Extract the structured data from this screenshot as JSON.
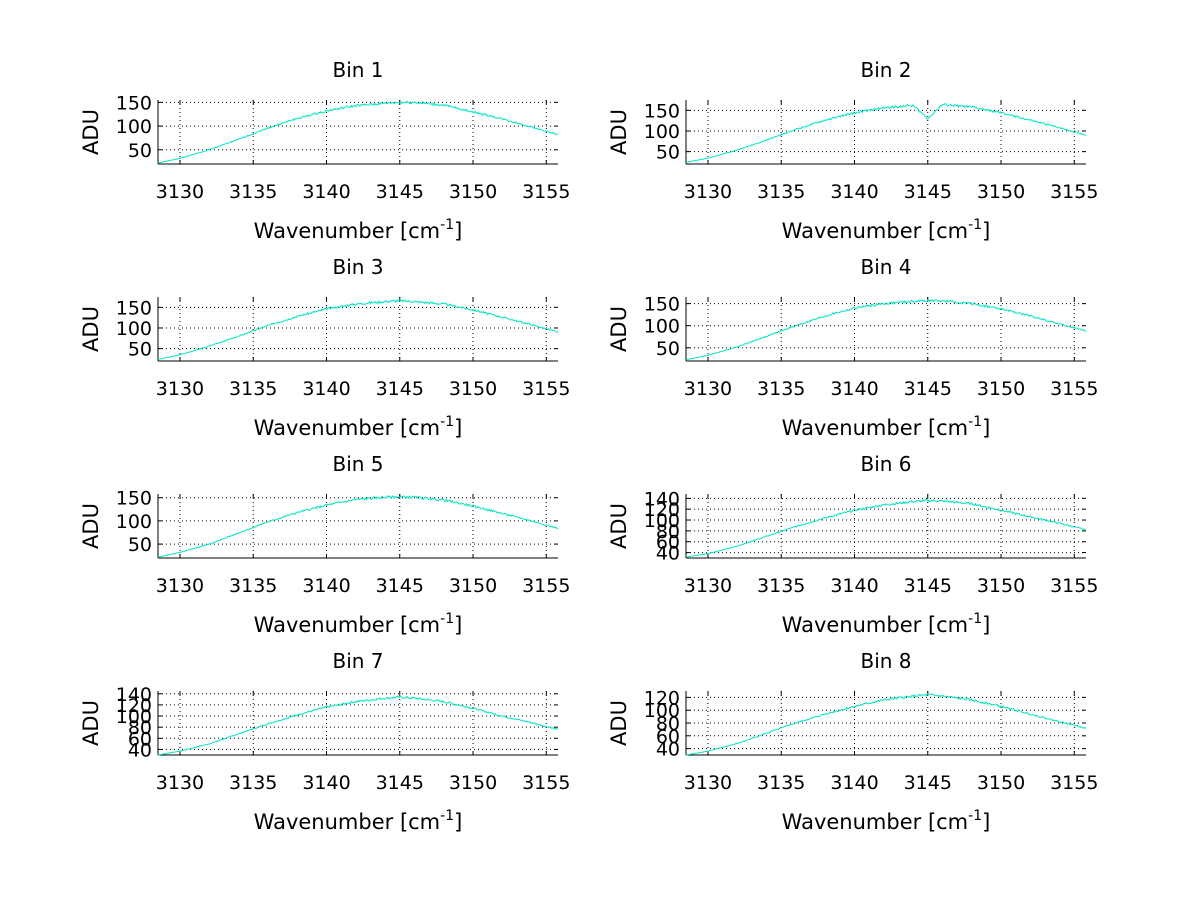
{
  "figure": {
    "background": "#ffffff",
    "series_color": "#00e5c0"
  },
  "chart_data": [
    {
      "type": "line",
      "title": "Bin 1",
      "xlabel_prefix": "Wavenumber [cm",
      "xlabel_sup": "-1",
      "xlabel_suffix": "]",
      "ylabel": "ADU",
      "xlim": [
        3128.5,
        3155.8
      ],
      "ylim": [
        20,
        155
      ],
      "xticks": [
        3130,
        3135,
        3140,
        3145,
        3150,
        3155
      ],
      "yticks": [
        50,
        100,
        150
      ],
      "grid": true,
      "series": [
        {
          "x": [
            3128.5,
            3130,
            3132,
            3134,
            3136,
            3138,
            3140,
            3142,
            3144,
            3145,
            3146,
            3148,
            3150,
            3152,
            3154,
            3155.8
          ],
          "y": [
            22,
            32,
            50,
            72,
            96,
            116,
            132,
            143,
            148,
            150,
            150,
            144,
            130,
            115,
            98,
            82
          ]
        }
      ]
    },
    {
      "type": "line",
      "title": "Bin 2",
      "xlabel_prefix": "Wavenumber [cm",
      "xlabel_sup": "-1",
      "xlabel_suffix": "]",
      "ylabel": "ADU",
      "xlim": [
        3128.5,
        3155.8
      ],
      "ylim": [
        20,
        175
      ],
      "xticks": [
        3130,
        3135,
        3140,
        3145,
        3150,
        3155
      ],
      "yticks": [
        50,
        100,
        150
      ],
      "grid": true,
      "series": [
        {
          "x": [
            3128.5,
            3130,
            3132,
            3134,
            3136,
            3138,
            3140,
            3142,
            3144,
            3145,
            3146,
            3148,
            3150,
            3152,
            3154,
            3155.8
          ],
          "y": [
            24,
            34,
            54,
            78,
            104,
            126,
            144,
            156,
            162,
            130,
            164,
            158,
            144,
            126,
            108,
            90
          ]
        }
      ]
    },
    {
      "type": "line",
      "title": "Bin 3",
      "xlabel_prefix": "Wavenumber [cm",
      "xlabel_sup": "-1",
      "xlabel_suffix": "]",
      "ylabel": "ADU",
      "xlim": [
        3128.5,
        3155.8
      ],
      "ylim": [
        20,
        175
      ],
      "xticks": [
        3130,
        3135,
        3140,
        3145,
        3150,
        3155
      ],
      "yticks": [
        50,
        100,
        150
      ],
      "grid": true,
      "series": [
        {
          "x": [
            3128.5,
            3130,
            3132,
            3134,
            3136,
            3138,
            3140,
            3142,
            3144,
            3145,
            3146,
            3148,
            3150,
            3152,
            3154,
            3155.8
          ],
          "y": [
            24,
            35,
            56,
            80,
            106,
            128,
            146,
            158,
            164,
            166,
            164,
            158,
            144,
            126,
            108,
            90
          ]
        }
      ]
    },
    {
      "type": "line",
      "title": "Bin 4",
      "xlabel_prefix": "Wavenumber [cm",
      "xlabel_sup": "-1",
      "xlabel_suffix": "]",
      "ylabel": "ADU",
      "xlim": [
        3128.5,
        3155.8
      ],
      "ylim": [
        20,
        165
      ],
      "xticks": [
        3130,
        3135,
        3140,
        3145,
        3150,
        3155
      ],
      "yticks": [
        50,
        100,
        150
      ],
      "grid": true,
      "series": [
        {
          "x": [
            3128.5,
            3130,
            3132,
            3134,
            3136,
            3138,
            3140,
            3142,
            3144,
            3145,
            3146,
            3148,
            3150,
            3152,
            3154,
            3155.8
          ],
          "y": [
            23,
            33,
            52,
            76,
            100,
            122,
            140,
            150,
            155,
            157,
            156,
            150,
            138,
            122,
            104,
            88
          ]
        }
      ]
    },
    {
      "type": "line",
      "title": "Bin 5",
      "xlabel_prefix": "Wavenumber [cm",
      "xlabel_sup": "-1",
      "xlabel_suffix": "]",
      "ylabel": "ADU",
      "xlim": [
        3128.5,
        3155.8
      ],
      "ylim": [
        20,
        158
      ],
      "xticks": [
        3130,
        3135,
        3140,
        3145,
        3150,
        3155
      ],
      "yticks": [
        50,
        100,
        150
      ],
      "grid": true,
      "series": [
        {
          "x": [
            3128.5,
            3130,
            3132,
            3134,
            3136,
            3138,
            3140,
            3142,
            3144,
            3145,
            3146,
            3148,
            3150,
            3152,
            3154,
            3155.8
          ],
          "y": [
            22,
            32,
            50,
            74,
            98,
            118,
            134,
            146,
            151,
            152,
            151,
            145,
            132,
            116,
            100,
            84
          ]
        }
      ]
    },
    {
      "type": "line",
      "title": "Bin 6",
      "xlabel_prefix": "Wavenumber [cm",
      "xlabel_sup": "-1",
      "xlabel_suffix": "]",
      "ylabel": "ADU",
      "xlim": [
        3128.5,
        3155.8
      ],
      "ylim": [
        30,
        148
      ],
      "xticks": [
        3130,
        3135,
        3140,
        3145,
        3150,
        3155
      ],
      "yticks": [
        40,
        60,
        80,
        100,
        120,
        140
      ],
      "ytick_labels": [
        "40",
        "60",
        "80",
        "100",
        "120",
        "140"
      ],
      "grid": true,
      "series": [
        {
          "x": [
            3128.5,
            3130,
            3132,
            3134,
            3136,
            3138,
            3140,
            3142,
            3144,
            3145,
            3146,
            3148,
            3150,
            3152,
            3154,
            3155.8
          ],
          "y": [
            32,
            38,
            52,
            70,
            88,
            104,
            118,
            128,
            134,
            136,
            135,
            130,
            118,
            106,
            94,
            82
          ]
        }
      ]
    },
    {
      "type": "line",
      "title": "Bin 7",
      "xlabel_prefix": "Wavenumber [cm",
      "xlabel_sup": "-1",
      "xlabel_suffix": "]",
      "ylabel": "ADU",
      "xlim": [
        3128.5,
        3155.8
      ],
      "ylim": [
        30,
        145
      ],
      "xticks": [
        3130,
        3135,
        3140,
        3145,
        3150,
        3155
      ],
      "yticks": [
        40,
        60,
        80,
        100,
        120,
        140
      ],
      "ytick_labels": [
        "40",
        "60",
        "80",
        "100",
        "120",
        "140"
      ],
      "grid": true,
      "series": [
        {
          "x": [
            3128.5,
            3130,
            3132,
            3134,
            3136,
            3138,
            3140,
            3142,
            3144,
            3145,
            3146,
            3148,
            3150,
            3152,
            3154,
            3155.8
          ],
          "y": [
            30,
            37,
            50,
            68,
            86,
            102,
            116,
            126,
            132,
            134,
            132,
            126,
            114,
            100,
            88,
            76
          ]
        }
      ]
    },
    {
      "type": "line",
      "title": "Bin 8",
      "xlabel_prefix": "Wavenumber [cm",
      "xlabel_sup": "-1",
      "xlabel_suffix": "]",
      "ylabel": "ADU",
      "xlim": [
        3128.5,
        3155.8
      ],
      "ylim": [
        30,
        130
      ],
      "xticks": [
        3130,
        3135,
        3140,
        3145,
        3150,
        3155
      ],
      "yticks": [
        40,
        60,
        80,
        100,
        120
      ],
      "ytick_labels": [
        "40",
        "60",
        "80",
        "100",
        "120"
      ],
      "grid": true,
      "series": [
        {
          "x": [
            3128.5,
            3130,
            3132,
            3134,
            3136,
            3138,
            3140,
            3142,
            3144,
            3145,
            3146,
            3148,
            3150,
            3152,
            3154,
            3155.8
          ],
          "y": [
            30,
            36,
            48,
            64,
            80,
            94,
            106,
            116,
            122,
            124,
            122,
            116,
            106,
            94,
            82,
            72
          ]
        }
      ]
    }
  ]
}
